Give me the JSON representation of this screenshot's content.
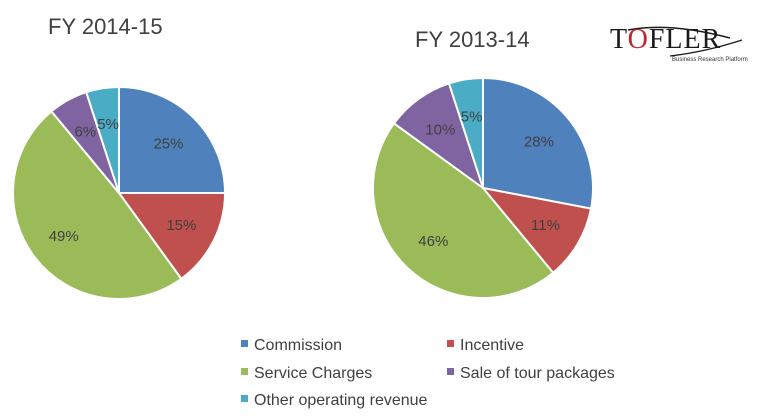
{
  "logo": {
    "text_a": "T",
    "text_o": "O",
    "text_rest": "FLER",
    "tagline": "Business Research Platform"
  },
  "colors": {
    "commission": "#4f81bd",
    "incentive": "#c0504d",
    "service": "#9bbb59",
    "tour": "#8064a2",
    "other": "#4bacc6"
  },
  "legend": [
    {
      "label": "Commission",
      "color": "#4f81bd"
    },
    {
      "label": "Incentive",
      "color": "#c0504d"
    },
    {
      "label": "Service Charges",
      "color": "#9bbb59"
    },
    {
      "label": "Sale of tour packages",
      "color": "#8064a2"
    },
    {
      "label": "Other operating revenue",
      "color": "#4bacc6"
    }
  ],
  "chart_data": [
    {
      "type": "pie",
      "title": "FY 2014-15",
      "categories": [
        "Commission",
        "Incentive",
        "Service Charges",
        "Sale of tour packages",
        "Other operating revenue"
      ],
      "values": [
        25,
        15,
        49,
        6,
        5
      ],
      "labels": [
        "25%",
        "15%",
        "49%",
        "6%",
        "5%"
      ],
      "legend_position": "bottom"
    },
    {
      "type": "pie",
      "title": "FY 2013-14",
      "categories": [
        "Commission",
        "Incentive",
        "Service Charges",
        "Sale of tour packages",
        "Other operating revenue"
      ],
      "values": [
        28,
        11,
        46,
        10,
        5
      ],
      "labels": [
        "28%",
        "11%",
        "46%",
        "10%",
        "5%"
      ],
      "legend_position": "bottom"
    }
  ]
}
